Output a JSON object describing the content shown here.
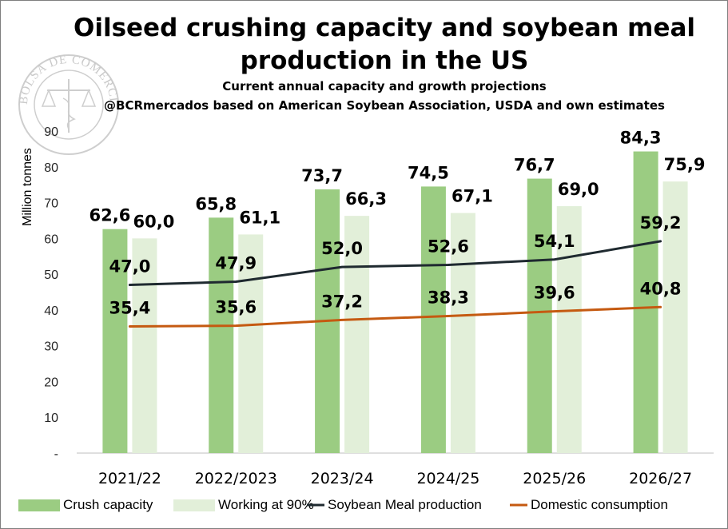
{
  "chart_data": {
    "type": "bar",
    "title_lines": [
      "Oilseed crushing capacity and soybean meal",
      "production in the US"
    ],
    "subtitle": "Current annual capacity and growth projections",
    "source": "@BCRmercados based on American Soybean Association, USDA and own estimates",
    "ylabel": "Million tonnes",
    "ylim": [
      0,
      90
    ],
    "yticks": [
      0,
      10,
      20,
      30,
      40,
      50,
      60,
      70,
      80,
      90
    ],
    "ytick_labels": [
      "-",
      "10",
      "20",
      "30",
      "40",
      "50",
      "60",
      "70",
      "80",
      "90"
    ],
    "categories": [
      "2021/22",
      "2022/2023",
      "2023/24",
      "2024/25",
      "2025/26",
      "2026/27"
    ],
    "series": [
      {
        "name": "Crush capacity",
        "kind": "bar",
        "color": "#9bcc82",
        "values": [
          62.6,
          65.8,
          73.7,
          74.5,
          76.7,
          84.3
        ],
        "labels": [
          "62,6",
          "65,8",
          "73,7",
          "74,5",
          "76,7",
          "84,3"
        ]
      },
      {
        "name": "Working at 90%",
        "kind": "bar",
        "color": "#e2efd9",
        "values": [
          60.0,
          61.1,
          66.3,
          67.1,
          69.0,
          75.9
        ],
        "labels": [
          "60,0",
          "61,1",
          "66,3",
          "67,1",
          "69,0",
          "75,9"
        ]
      },
      {
        "name": "Soybean Meal production",
        "kind": "line",
        "color": "#1f2a30",
        "values": [
          47.0,
          47.9,
          52.0,
          52.6,
          54.1,
          59.2
        ],
        "labels": [
          "47,0",
          "47,9",
          "52,0",
          "52,6",
          "54,1",
          "59,2"
        ]
      },
      {
        "name": "Domestic consumption",
        "kind": "line",
        "color": "#c55a11",
        "values": [
          35.4,
          35.6,
          37.2,
          38.3,
          39.6,
          40.8
        ],
        "labels": [
          "35,4",
          "35,6",
          "37,2",
          "38,3",
          "39,6",
          "40,8"
        ]
      }
    ],
    "grid": false,
    "legend_position": "bottom"
  },
  "watermark": {
    "text": "BOLSA DE COMERCIO DE ROSARIO",
    "icon": "caduceus-scales-seal-icon"
  }
}
